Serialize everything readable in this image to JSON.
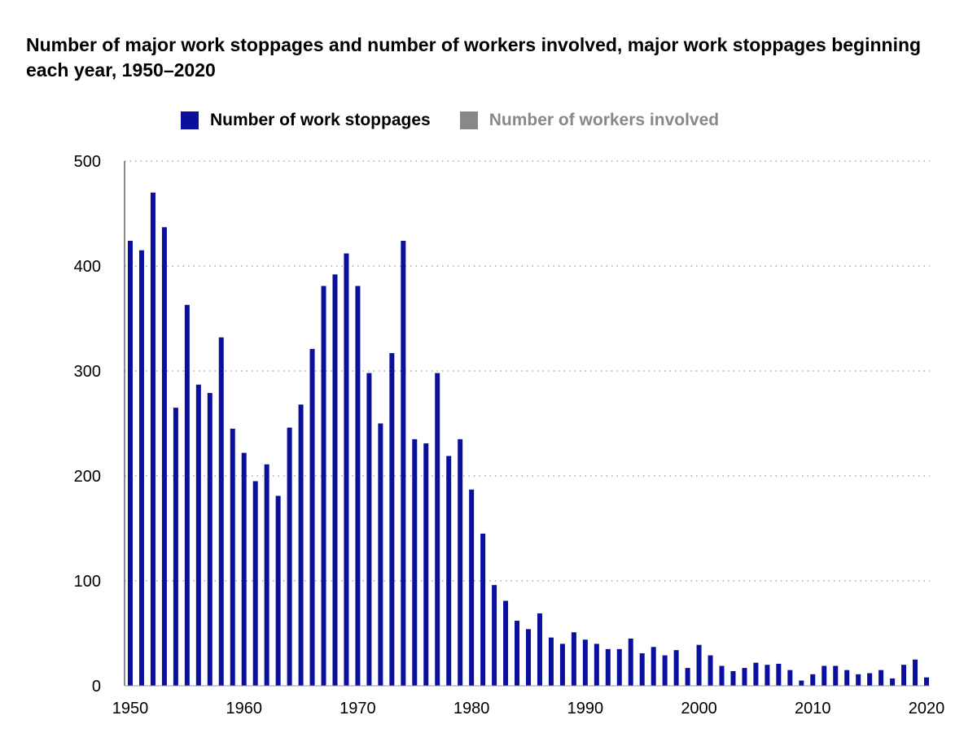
{
  "title": "Number of major work stoppages and number of workers involved, major work stoppages beginning each year, 1950–2020",
  "legend": {
    "items": [
      {
        "label": "Number of work stoppages",
        "color": "#0B0F9E",
        "active": true
      },
      {
        "label": "Number of workers involved",
        "color": "#888888",
        "active": false
      }
    ]
  },
  "chart_data": {
    "type": "bar",
    "title": "Number of major work stoppages and number of workers involved, major work stoppages beginning each year, 1950–2020",
    "xlabel": "",
    "ylabel": "",
    "ylim": [
      0,
      500
    ],
    "xlim": [
      1950,
      2020
    ],
    "y_ticks": [
      0,
      100,
      200,
      300,
      400,
      500
    ],
    "x_ticks": [
      1950,
      1960,
      1970,
      1980,
      1990,
      2000,
      2010,
      2020
    ],
    "grid": "horizontal dotted",
    "legend_position": "top",
    "series": [
      {
        "name": "Number of work stoppages",
        "color": "#0B0F9E",
        "x": [
          1950,
          1951,
          1952,
          1953,
          1954,
          1955,
          1956,
          1957,
          1958,
          1959,
          1960,
          1961,
          1962,
          1963,
          1964,
          1965,
          1966,
          1967,
          1968,
          1969,
          1970,
          1971,
          1972,
          1973,
          1974,
          1975,
          1976,
          1977,
          1978,
          1979,
          1980,
          1981,
          1982,
          1983,
          1984,
          1985,
          1986,
          1987,
          1988,
          1989,
          1990,
          1991,
          1992,
          1993,
          1994,
          1995,
          1996,
          1997,
          1998,
          1999,
          2000,
          2001,
          2002,
          2003,
          2004,
          2005,
          2006,
          2007,
          2008,
          2009,
          2010,
          2011,
          2012,
          2013,
          2014,
          2015,
          2016,
          2017,
          2018,
          2019,
          2020
        ],
        "values": [
          424,
          415,
          470,
          437,
          265,
          363,
          287,
          279,
          332,
          245,
          222,
          195,
          211,
          181,
          246,
          268,
          321,
          381,
          392,
          412,
          381,
          298,
          250,
          317,
          424,
          235,
          231,
          298,
          219,
          235,
          187,
          145,
          96,
          81,
          62,
          54,
          69,
          46,
          40,
          51,
          44,
          40,
          35,
          35,
          45,
          31,
          37,
          29,
          34,
          17,
          39,
          29,
          19,
          14,
          17,
          22,
          20,
          21,
          15,
          5,
          11,
          19,
          19,
          15,
          11,
          12,
          15,
          7,
          20,
          25,
          8
        ]
      },
      {
        "name": "Number of workers involved",
        "color": "#888888",
        "hidden": true,
        "values": []
      }
    ]
  }
}
